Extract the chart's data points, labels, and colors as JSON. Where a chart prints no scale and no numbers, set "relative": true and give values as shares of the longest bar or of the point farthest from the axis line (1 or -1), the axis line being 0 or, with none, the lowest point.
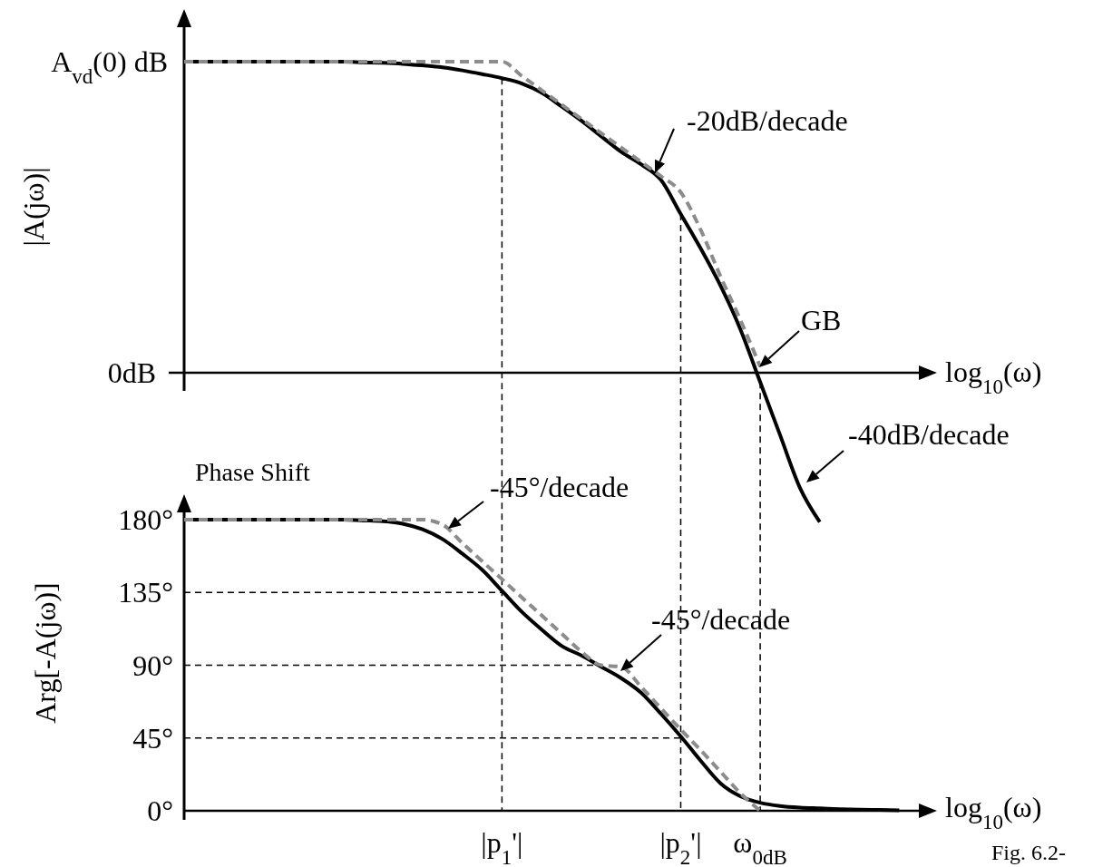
{
  "chart_data": [
    {
      "type": "line",
      "ylabel": "|A(jω)|",
      "xlabel": "log$_{10}$(ω)",
      "categories": [
        null,
        null,
        null,
        null,
        null,
        null,
        null,
        null,
        null,
        null,
        null,
        null,
        null,
        null,
        null,
        null,
        null,
        null,
        null,
        null,
        null,
        null,
        null,
        null,
        null,
        null,
        null,
        null,
        null,
        null,
        null,
        null,
        null,
        null,
        null,
        null,
        null
      ],
      "series": [
        {
          "color": "#000000",
          "line_style": "solid",
          "values": [
            1,
            1,
            1,
            1,
            1,
            1,
            1,
            1,
            1,
            0.998,
            0.996,
            0.993,
            0.988,
            0.982,
            0.972,
            0.96,
            0.947,
            0.93,
            0.9,
            0.856,
            0.81,
            0.76,
            0.71,
            0.67,
            0.62,
            0.51,
            0.4,
            0.28,
            0.14,
            -0.03,
            -0.2,
            -0.37,
            -0.48,
            null,
            null,
            null,
            null
          ]
        },
        {
          "color": "#8c8c8c",
          "line_style": "dashed",
          "values": [
            1,
            1,
            1,
            1,
            1,
            1,
            1,
            1,
            1,
            1,
            1,
            1,
            1,
            1,
            1,
            1,
            1,
            0.954,
            0.908,
            0.862,
            0.816,
            0.77,
            0.724,
            0.678,
            0.632,
            0.58,
            0.46,
            0.31,
            0.17,
            0.02,
            null,
            null,
            null,
            null,
            null,
            null,
            null
          ]
        }
      ],
      "relative": true,
      "annotations": [
        "A$_{vd}$(0) dB",
        "0dB",
        "-20dB/decade",
        "GB",
        "-40dB/decade"
      ],
      "marker": "none",
      "grid": false
    },
    {
      "type": "line",
      "title": "Phase Shift",
      "ylabel": "Arg[-A(jω)]",
      "xlabel": "log$_{10}$(ω)",
      "categories": [
        null,
        null,
        null,
        null,
        null,
        null,
        null,
        null,
        null,
        null,
        null,
        null,
        null,
        null,
        null,
        null,
        "|p$_{1}$'|",
        null,
        null,
        null,
        null,
        null,
        null,
        null,
        null,
        "|p$_{2}$'|",
        null,
        null,
        null,
        "ω$_{0dB}$",
        null,
        null,
        null,
        null,
        null,
        null,
        null
      ],
      "series": [
        {
          "color": "#000000",
          "line_style": "solid",
          "values": [
            180,
            180,
            180,
            180,
            180,
            180,
            180,
            180,
            180,
            179.5,
            179,
            177.5,
            174,
            168,
            159,
            149,
            136,
            123,
            112,
            102,
            96,
            89,
            82,
            73,
            60,
            46,
            31,
            17,
            9,
            5,
            3,
            2,
            1.5,
            1,
            0.7,
            0.5,
            0.3
          ]
        },
        {
          "color": "#8c8c8c",
          "line_style": "dashed",
          "values": [
            180,
            180,
            180,
            180,
            180,
            180,
            180,
            180,
            180,
            180,
            180,
            180,
            180,
            177,
            165.6,
            154.3,
            143.2,
            131.9,
            120.8,
            109.6,
            98.4,
            90,
            89,
            76.7,
            63.4,
            50.2,
            37.5,
            24.2,
            10.9,
            0,
            null,
            null,
            null,
            null,
            null,
            null,
            null
          ]
        }
      ],
      "ylim": [
        0,
        180
      ],
      "yticks": [
        {
          "value": 0,
          "label": "0°"
        },
        {
          "value": 45,
          "label": "45°"
        },
        {
          "value": 90,
          "label": "90°"
        },
        {
          "value": 135,
          "label": "135°"
        },
        {
          "value": 180,
          "label": "180°"
        }
      ],
      "ref_lines": [
        {
          "axis": "y",
          "value": 135,
          "color": "#000000",
          "line_style": "dashed"
        },
        {
          "axis": "y",
          "value": 90,
          "color": "#000000",
          "line_style": "dashed"
        },
        {
          "axis": "y",
          "value": 45,
          "color": "#000000",
          "line_style": "dashed"
        },
        {
          "axis": "x",
          "value": "|p$_{1}$'|",
          "color": "#000000",
          "line_style": "dashed"
        },
        {
          "axis": "x",
          "value": "|p$_{2}$'|",
          "color": "#000000",
          "line_style": "dashed"
        },
        {
          "axis": "x",
          "value": "ω$_{0dB}$",
          "color": "#000000",
          "line_style": "dashed"
        }
      ],
      "annotations": [
        "-45°/decade",
        "-45°/decade",
        "Fig. 6.2-"
      ],
      "marker": "none",
      "grid": false
    }
  ]
}
